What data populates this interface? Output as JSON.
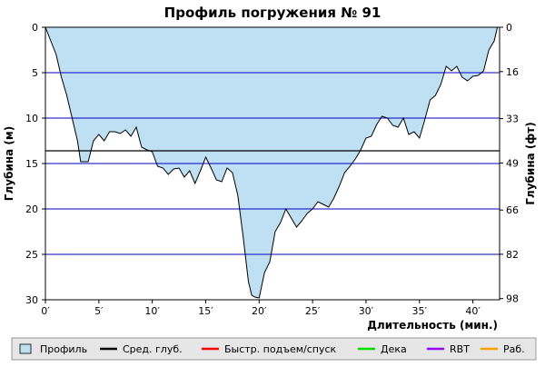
{
  "chart_data": {
    "type": "area",
    "title": "Профиль погружения № 91",
    "xlabel": "Длительность (мин.)",
    "ylabel_left": "Глубина (м)",
    "ylabel_right": "Глубина (фт)",
    "xlim": [
      0,
      42.5
    ],
    "ylim": [
      0,
      30
    ],
    "y_inverted": true,
    "x_ticks": [
      {
        "value": 0,
        "label": "0′"
      },
      {
        "value": 5,
        "label": "5′"
      },
      {
        "value": 10,
        "label": "10′"
      },
      {
        "value": 15,
        "label": "15′"
      },
      {
        "value": 20,
        "label": "20′"
      },
      {
        "value": 25,
        "label": "25′"
      },
      {
        "value": 30,
        "label": "30′"
      },
      {
        "value": 35,
        "label": "35′"
      },
      {
        "value": 40,
        "label": "40′"
      }
    ],
    "y_ticks_left": [
      {
        "value": 0,
        "label": "0"
      },
      {
        "value": 5,
        "label": "5"
      },
      {
        "value": 10,
        "label": "10"
      },
      {
        "value": 15,
        "label": "15"
      },
      {
        "value": 20,
        "label": "20"
      },
      {
        "value": 25,
        "label": "25"
      },
      {
        "value": 30,
        "label": "30"
      }
    ],
    "y_ticks_right": [
      {
        "value": 0,
        "label": "0"
      },
      {
        "value": 4.88,
        "label": "16"
      },
      {
        "value": 10.06,
        "label": "33"
      },
      {
        "value": 14.94,
        "label": "49"
      },
      {
        "value": 20.12,
        "label": "66"
      },
      {
        "value": 24.99,
        "label": "82"
      },
      {
        "value": 29.87,
        "label": "98"
      }
    ],
    "average_depth": 13.6,
    "profile": {
      "x": [
        0,
        0.5,
        1,
        1.5,
        2,
        2.5,
        3,
        3.3,
        3.6,
        4,
        4.5,
        5,
        5.5,
        6,
        6.5,
        7,
        7.5,
        8,
        8.5,
        9,
        9.5,
        10,
        10.5,
        11,
        11.5,
        12,
        12.5,
        13,
        13.5,
        14,
        14.5,
        15,
        15.5,
        16,
        16.5,
        17,
        17.5,
        18,
        18.5,
        19,
        19.3,
        19.6,
        20,
        20.5,
        21,
        21.5,
        22,
        22.5,
        23,
        23.5,
        24,
        24.5,
        25,
        25.5,
        26,
        26.5,
        27,
        27.5,
        28,
        28.5,
        29,
        29.5,
        30,
        30.5,
        31,
        31.5,
        32,
        32.5,
        33,
        33.5,
        34,
        34.5,
        35,
        35.5,
        36,
        36.5,
        37,
        37.5,
        38,
        38.5,
        39,
        39.5,
        40,
        40.5,
        41,
        41.5,
        42,
        42.3
      ],
      "y": [
        0,
        1.5,
        3,
        5.5,
        7.5,
        10,
        12.5,
        14.8,
        14.8,
        14.8,
        12.5,
        11.8,
        12.5,
        11.5,
        11.5,
        11.7,
        11.3,
        12,
        11,
        13.2,
        13.5,
        13.7,
        15.3,
        15.5,
        16.2,
        15.6,
        15.5,
        16.5,
        15.8,
        17.2,
        15.8,
        14.3,
        15.5,
        16.8,
        17,
        15.5,
        16,
        18.5,
        23,
        28,
        29.5,
        29.7,
        29.8,
        27,
        25.8,
        22.5,
        21.5,
        20,
        21,
        22,
        21.3,
        20.5,
        20,
        19.2,
        19.5,
        19.8,
        18.8,
        17.5,
        16,
        15.3,
        14.5,
        13.5,
        12.2,
        12,
        10.7,
        9.8,
        10,
        10.8,
        11,
        10,
        11.8,
        11.5,
        12.2,
        10.2,
        8,
        7.5,
        6.3,
        4.3,
        4.8,
        4.3,
        5.5,
        5.9,
        5.4,
        5.3,
        4.8,
        2.5,
        1.5,
        0
      ]
    },
    "legend": [
      {
        "key": "profile",
        "label": "Профиль",
        "color": "#bfe0f3",
        "style": "box"
      },
      {
        "key": "avg",
        "label": "Сред. глуб.",
        "color": "#000000",
        "style": "line"
      },
      {
        "key": "fast",
        "label": "Быстр. подъем/спуск",
        "color": "#ff0000",
        "style": "line"
      },
      {
        "key": "deco",
        "label": "Дека",
        "color": "#00e000",
        "style": "line"
      },
      {
        "key": "rbt",
        "label": "RBT",
        "color": "#9900ff",
        "style": "line"
      },
      {
        "key": "work",
        "label": "Раб.",
        "color": "#ffa000",
        "style": "line"
      }
    ],
    "colors": {
      "fill": "#bfe0f3",
      "profile_line": "#000000",
      "grid": "#0000c0",
      "avg_line": "#000000",
      "legend_bg": "#e6e6e6"
    },
    "grid": true,
    "legend_position": "bottom"
  }
}
